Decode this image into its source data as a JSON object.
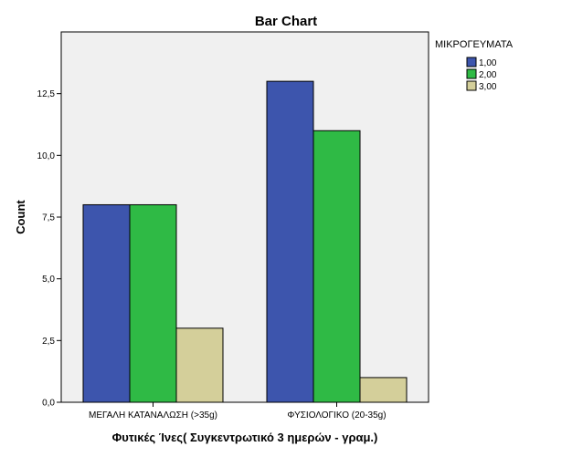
{
  "chart_data": {
    "type": "bar",
    "title": "Bar Chart",
    "xlabel": "Φυτικές Ίνες( Συγκεντρωτικό 3 ημερών - γραμ.)",
    "ylabel": "Count",
    "categories": [
      "ΜΕΓΑΛΗ ΚΑΤΑΝΑΛΩΣΗ (>35g)",
      "ΦΥΣΙΟΛΟΓΙΚΟ (20-35g)"
    ],
    "ylim": [
      0,
      15
    ],
    "yticks": [
      0,
      2.5,
      5,
      7.5,
      10,
      12.5
    ],
    "ytick_labels": [
      "0,0",
      "2,5",
      "5,0",
      "7,5",
      "10,0",
      "12,5"
    ],
    "grid": false,
    "legend": {
      "title": "ΜΙΚΡΟΓΕΥΜΑΤΑ",
      "position": "right"
    },
    "series": [
      {
        "name": "1,00",
        "color": "#3d55ad",
        "values": [
          8,
          13
        ]
      },
      {
        "name": "2,00",
        "color": "#2fba45",
        "values": [
          8,
          11
        ]
      },
      {
        "name": "3,00",
        "color": "#d4cf9a",
        "values": [
          3,
          1
        ]
      }
    ]
  }
}
